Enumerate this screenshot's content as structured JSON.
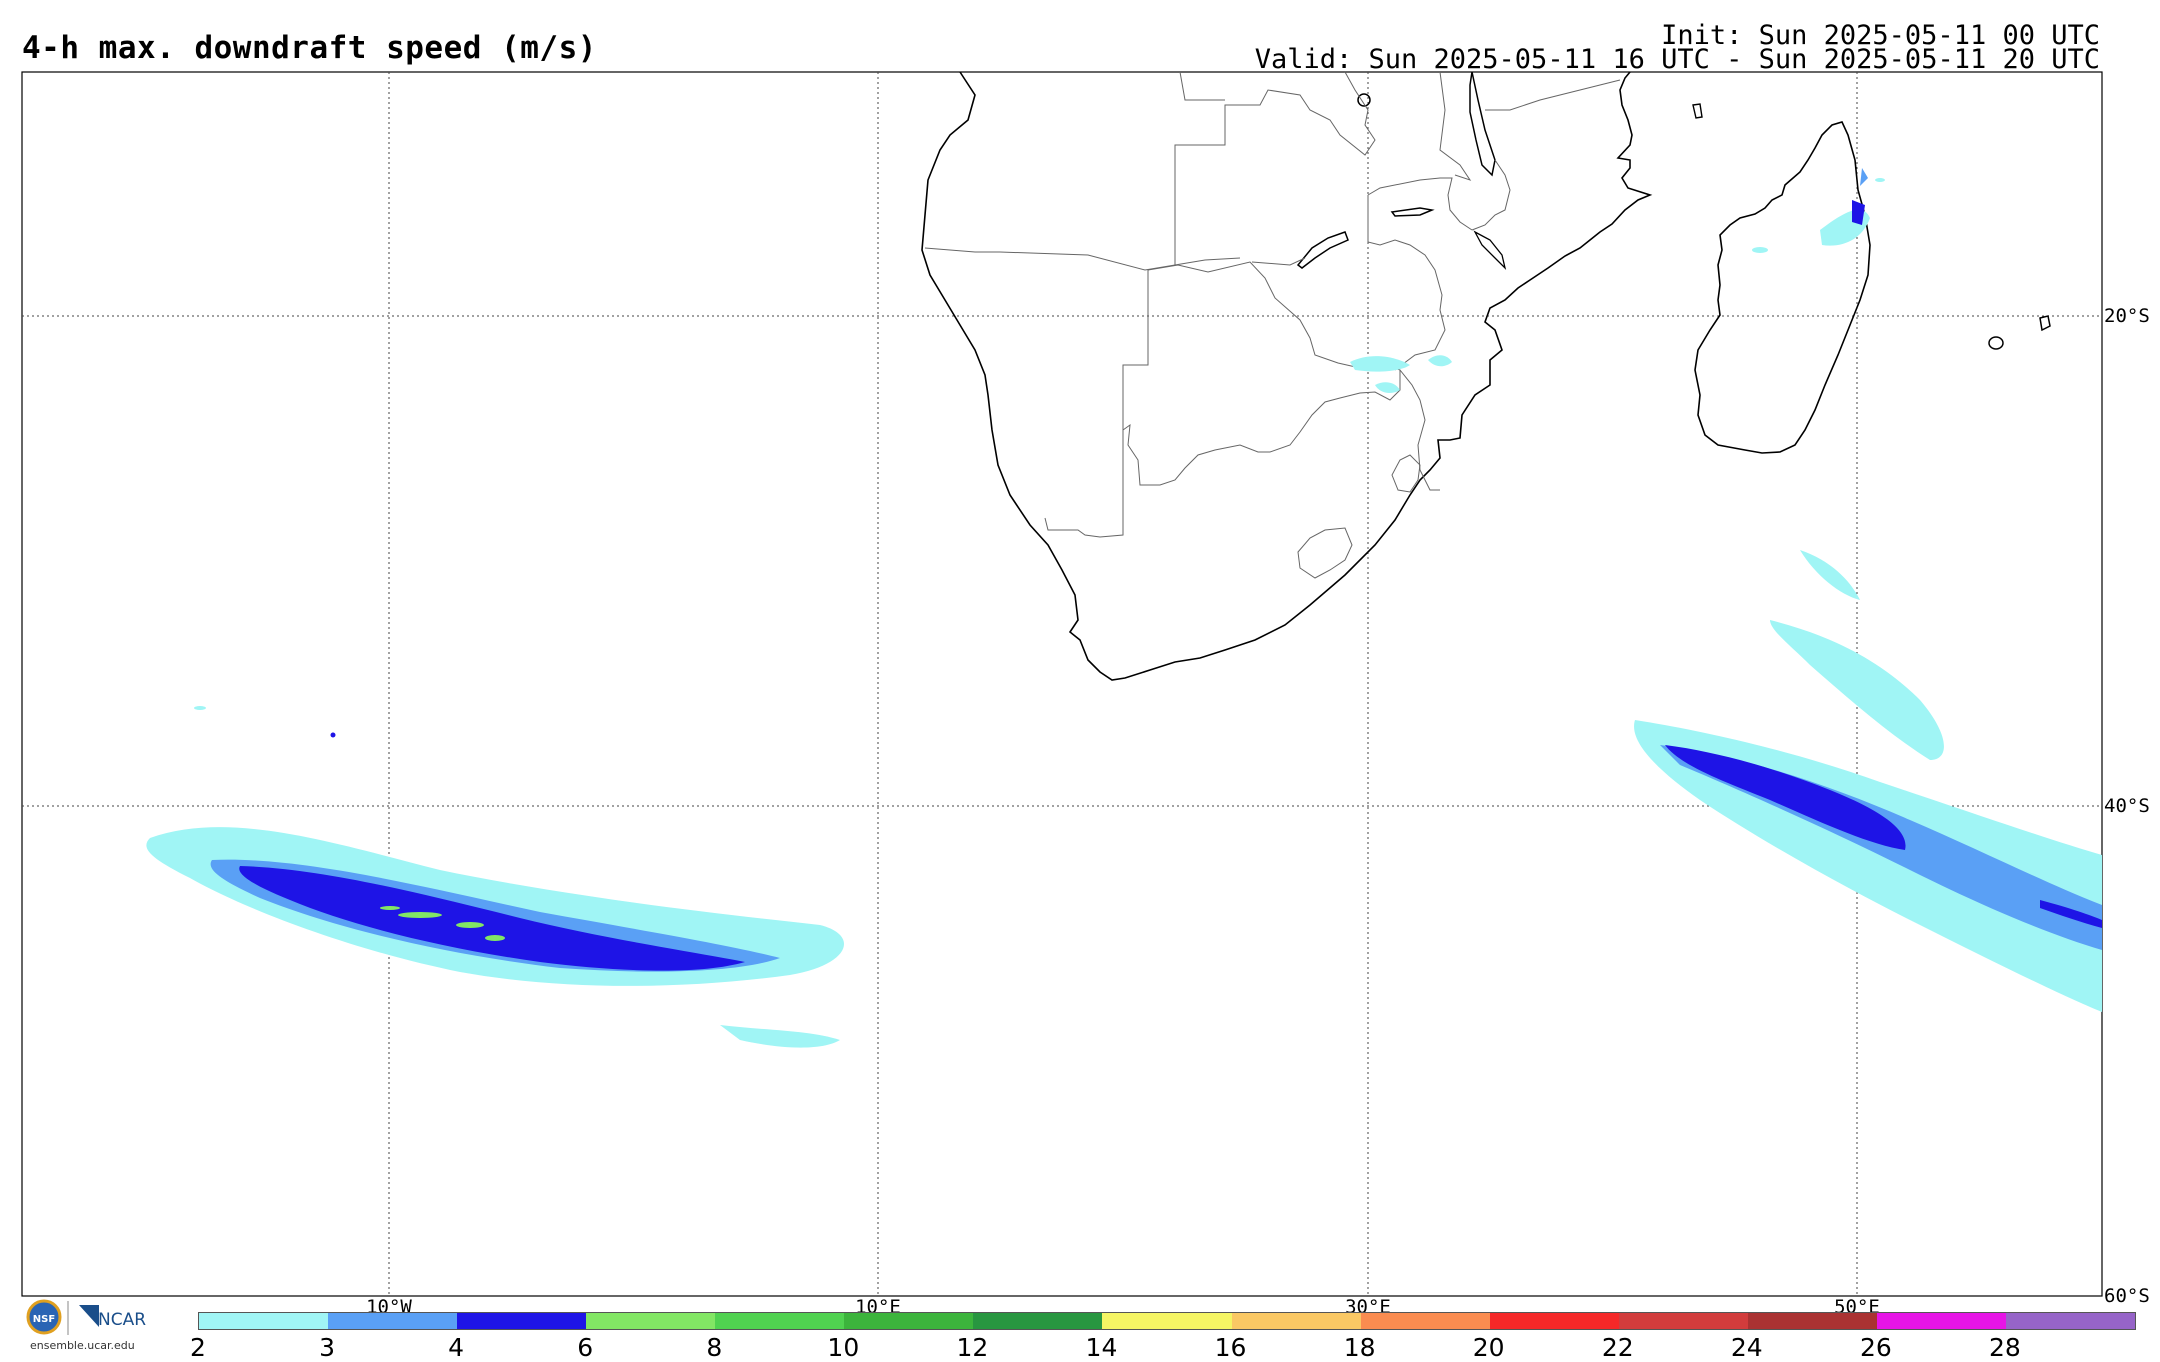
{
  "header": {
    "title": "4-h max. downdraft speed (m/s)",
    "init": "Init: Sun 2025-05-11 00 UTC",
    "valid": "Valid: Sun 2025-05-11 16 UTC - Sun 2025-05-11 20 UTC"
  },
  "map": {
    "lat_labels": [
      "20°S",
      "40°S",
      "60°S"
    ],
    "lon_labels": [
      "10°W",
      "10°E",
      "30°E",
      "50°E"
    ]
  },
  "colorbar": {
    "labels": [
      "2",
      "3",
      "4",
      "6",
      "8",
      "10",
      "12",
      "14",
      "16",
      "18",
      "20",
      "22",
      "24",
      "26",
      "28"
    ],
    "colors": [
      "#a0f5f5",
      "#5aa0f5",
      "#1e14e6",
      "#82e664",
      "#50d250",
      "#3cb43c",
      "#289640",
      "#f5f564",
      "#fac864",
      "#fa8c50",
      "#f52828",
      "#d23c3c",
      "#aa3232",
      "#e614e6",
      "#9664c8"
    ]
  },
  "logo": {
    "text": "NCAR",
    "url": "ensemble.ucar.edu"
  }
}
